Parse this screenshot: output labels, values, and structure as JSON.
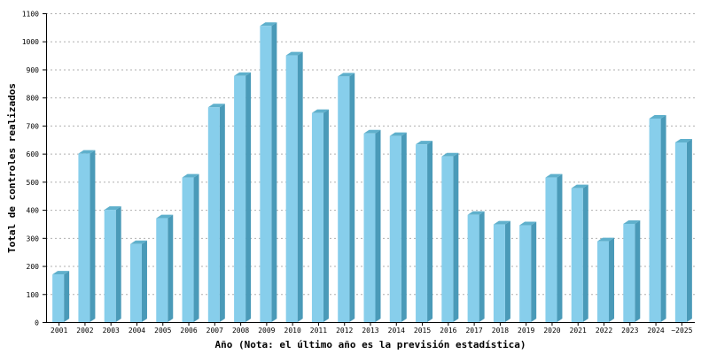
{
  "chart_data": {
    "type": "bar",
    "title": "",
    "xlabel": "Año (Nota: el último año es la previsión estadística)",
    "ylabel": "Total de controles realizados",
    "ylim": [
      0,
      1100
    ],
    "yticks": [
      0,
      100,
      200,
      300,
      400,
      500,
      600,
      700,
      800,
      900,
      1000,
      1100
    ],
    "grid": true,
    "categories": [
      "2001",
      "2002",
      "2003",
      "2004",
      "2005",
      "2006",
      "2007",
      "2008",
      "2009",
      "2010",
      "2011",
      "2012",
      "2013",
      "2014",
      "2015",
      "2016",
      "2017",
      "2018",
      "2019",
      "2020",
      "2021",
      "2022",
      "2023",
      "2024",
      "~2025"
    ],
    "values": [
      170,
      600,
      400,
      278,
      370,
      515,
      765,
      877,
      1055,
      950,
      745,
      875,
      672,
      663,
      633,
      590,
      382,
      348,
      345,
      515,
      477,
      288,
      350,
      725,
      640
    ],
    "colors": {
      "bar_front": "#87ceeb",
      "bar_side": "#4a9ab8",
      "bar_top": "#5fb0cc",
      "grid": "#b0b0b0",
      "axis": "#000000"
    }
  }
}
